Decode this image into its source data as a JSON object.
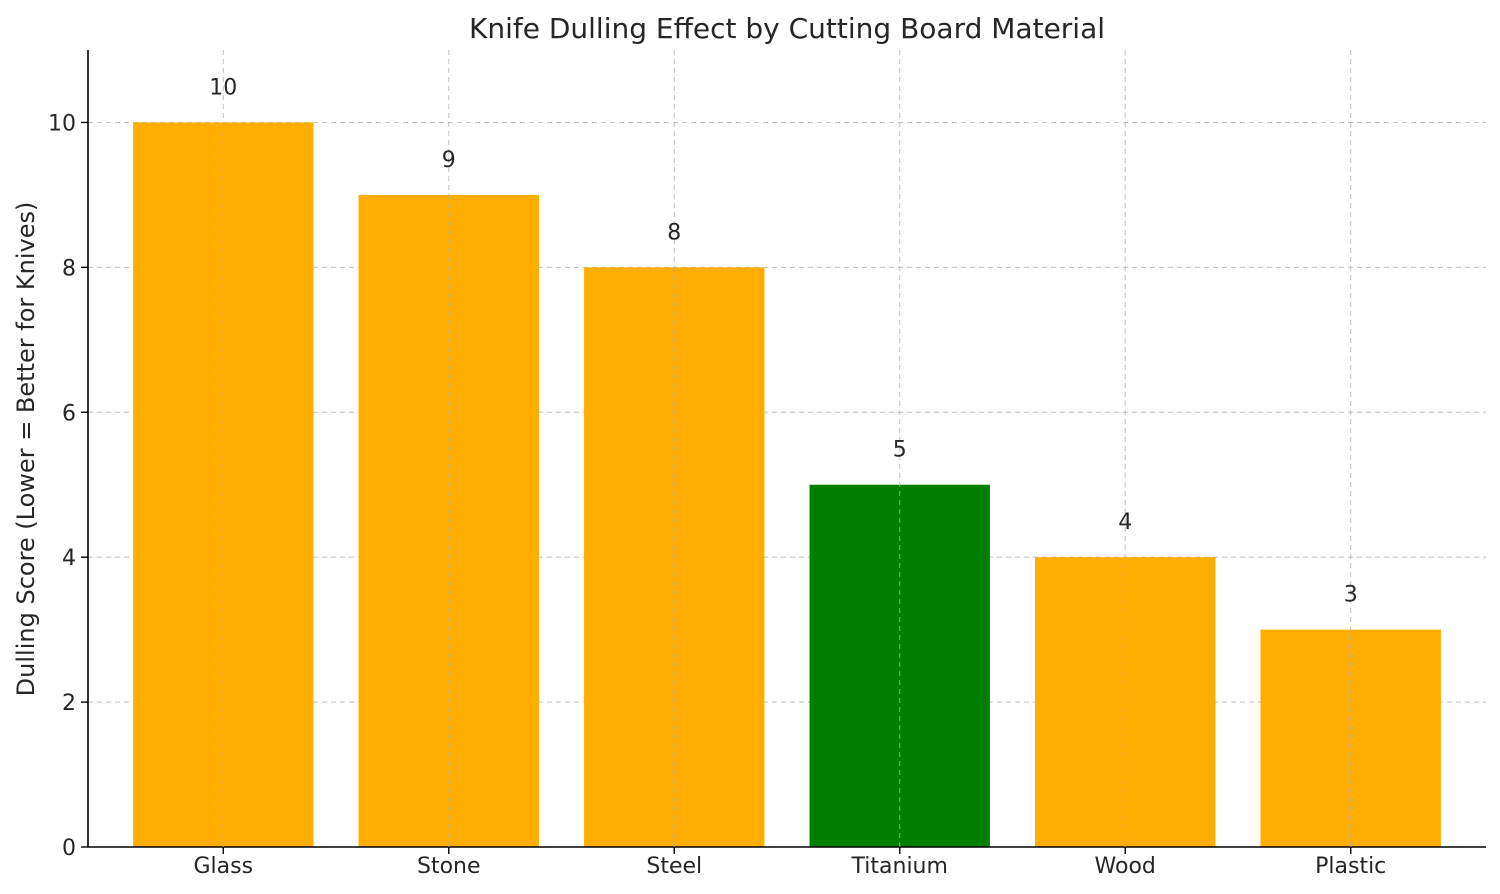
{
  "chart_data": {
    "type": "bar",
    "title": "Knife Dulling Effect by Cutting Board Material",
    "xlabel": "",
    "ylabel": "Dulling Score (Lower = Better for Knives)",
    "categories": [
      "Glass",
      "Stone",
      "Steel",
      "Titanium",
      "Wood",
      "Plastic"
    ],
    "values": [
      10,
      9,
      8,
      5,
      4,
      3
    ],
    "data_labels": [
      "10",
      "9",
      "8",
      "5",
      "4",
      "3"
    ],
    "bar_colors": [
      "#FFAE00",
      "#FFAE00",
      "#FFAE00",
      "#008000",
      "#FFAE00",
      "#FFAE00"
    ],
    "highlight_category": "Titanium",
    "ylim": [
      0,
      11
    ],
    "yticks": [
      0,
      2,
      4,
      6,
      8,
      10
    ],
    "grid": true,
    "legend": "none"
  }
}
